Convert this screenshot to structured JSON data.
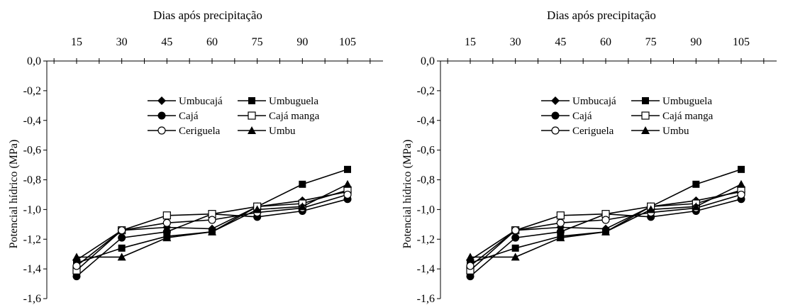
{
  "chart_data": [
    {
      "type": "line",
      "title": "",
      "xlabel": "Dias após precipitação",
      "ylabel": "Potencial hídrico (MPa)",
      "x_axis_position": "top",
      "x": [
        15,
        30,
        45,
        60,
        75,
        90,
        105
      ],
      "x_tick_labels": [
        "15",
        "30",
        "45",
        "60",
        "75",
        "90",
        "105"
      ],
      "ylim": [
        -1.6,
        0.0
      ],
      "y_ticks": [
        0.0,
        -0.2,
        -0.4,
        -0.6,
        -0.8,
        -1.0,
        -1.2,
        -1.4,
        -1.6
      ],
      "y_tick_labels": [
        "0,0",
        "-0,2",
        "-0,4",
        "-0,6",
        "-0,8",
        "-1,0",
        "-1,2",
        "-1,4",
        "-1,6"
      ],
      "grid": false,
      "legend_position": "center-right",
      "series": [
        {
          "name": "Umbucajá",
          "marker": "diamond",
          "values": [
            -1.34,
            -1.14,
            -1.12,
            -1.13,
            -0.98,
            -0.94,
            -0.88
          ]
        },
        {
          "name": "Umbuguela",
          "marker": "square-filled",
          "values": [
            -1.36,
            -1.26,
            -1.18,
            -1.15,
            -0.98,
            -0.83,
            -0.73
          ]
        },
        {
          "name": "Cajá",
          "marker": "circle-filled",
          "values": [
            -1.45,
            -1.19,
            -1.15,
            -1.03,
            -1.05,
            -1.01,
            -0.93
          ]
        },
        {
          "name": "Cajá manga",
          "marker": "square-open",
          "values": [
            -1.41,
            -1.14,
            -1.04,
            -1.03,
            -0.98,
            -0.96,
            -0.87
          ]
        },
        {
          "name": "Ceriguela",
          "marker": "circle-open",
          "values": [
            -1.38,
            -1.14,
            -1.09,
            -1.07,
            -1.02,
            -0.99,
            -0.9
          ]
        },
        {
          "name": "Umbu",
          "marker": "triangle",
          "values": [
            -1.32,
            -1.32,
            -1.19,
            -1.15,
            -1.0,
            -0.98,
            -0.83
          ]
        }
      ]
    },
    {
      "type": "line",
      "title": "",
      "xlabel": "Dias após precipitação",
      "ylabel": "Potencial hídrico (MPa)",
      "x_axis_position": "top",
      "x": [
        15,
        30,
        45,
        60,
        75,
        90,
        105
      ],
      "x_tick_labels": [
        "15",
        "30",
        "45",
        "60",
        "75",
        "90",
        "105"
      ],
      "ylim": [
        -1.6,
        0.0
      ],
      "y_ticks": [
        0.0,
        -0.2,
        -0.4,
        -0.6,
        -0.8,
        -1.0,
        -1.2,
        -1.4,
        -1.6
      ],
      "y_tick_labels": [
        "0,0",
        "-0,2",
        "-0,4",
        "-0,6",
        "-0,8",
        "-1,0",
        "-1,2",
        "-1,4",
        "-1,6"
      ],
      "grid": false,
      "legend_position": "center-right",
      "series": [
        {
          "name": "Umbucajá",
          "marker": "diamond",
          "values": [
            -1.34,
            -1.14,
            -1.12,
            -1.13,
            -0.98,
            -0.94,
            -0.88
          ]
        },
        {
          "name": "Umbuguela",
          "marker": "square-filled",
          "values": [
            -1.36,
            -1.26,
            -1.18,
            -1.15,
            -0.98,
            -0.83,
            -0.73
          ]
        },
        {
          "name": "Cajá",
          "marker": "circle-filled",
          "values": [
            -1.45,
            -1.19,
            -1.15,
            -1.03,
            -1.05,
            -1.01,
            -0.93
          ]
        },
        {
          "name": "Cajá manga",
          "marker": "square-open",
          "values": [
            -1.41,
            -1.14,
            -1.04,
            -1.03,
            -0.98,
            -0.96,
            -0.87
          ]
        },
        {
          "name": "Ceriguela",
          "marker": "circle-open",
          "values": [
            -1.38,
            -1.14,
            -1.09,
            -1.07,
            -1.02,
            -0.99,
            -0.9
          ]
        },
        {
          "name": "Umbu",
          "marker": "triangle",
          "values": [
            -1.32,
            -1.32,
            -1.19,
            -1.15,
            -1.0,
            -0.98,
            -0.83
          ]
        }
      ]
    }
  ]
}
